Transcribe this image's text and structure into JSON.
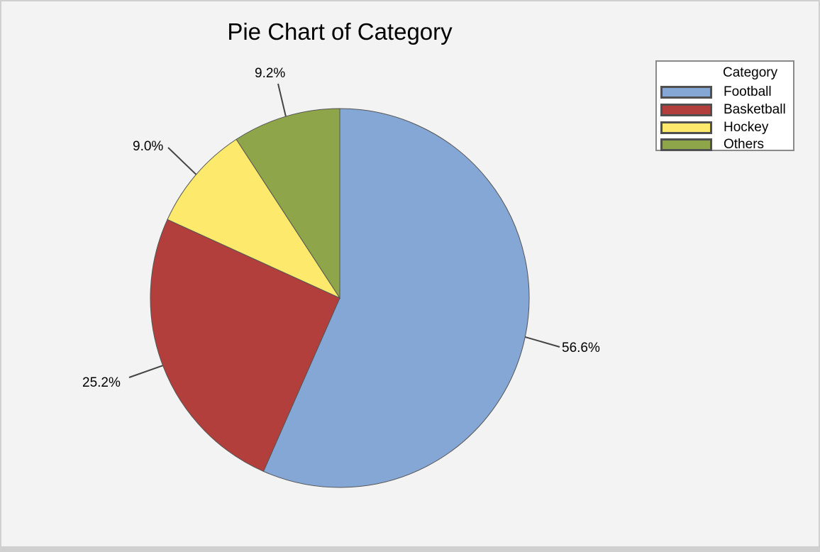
{
  "chart_data": {
    "type": "pie",
    "title": "Pie Chart of Category",
    "legend_title": "Category",
    "legend_position": "right",
    "categories": [
      "Football",
      "Basketball",
      "Hockey",
      "Others"
    ],
    "values": [
      56.6,
      25.2,
      9.0,
      9.2
    ],
    "labels": [
      "56.6%",
      "25.2%",
      "9.0%",
      "9.2%"
    ],
    "colors": [
      "#84a7d6",
      "#b33f3c",
      "#fde96b",
      "#8fa54a"
    ],
    "start_angle": "12 o'clock",
    "direction": "clockwise"
  },
  "chart": {
    "title": "Pie Chart of Category",
    "legend": {
      "title": "Category",
      "items": [
        {
          "label": "Football",
          "color": "#84a7d6"
        },
        {
          "label": "Basketball",
          "color": "#b33f3c"
        },
        {
          "label": "Hockey",
          "color": "#fde96b"
        },
        {
          "label": "Others",
          "color": "#8fa54a"
        }
      ]
    },
    "slice_labels": {
      "football": "56.6%",
      "basketball": "25.2%",
      "hockey": "9.0%",
      "others": "9.2%"
    }
  }
}
